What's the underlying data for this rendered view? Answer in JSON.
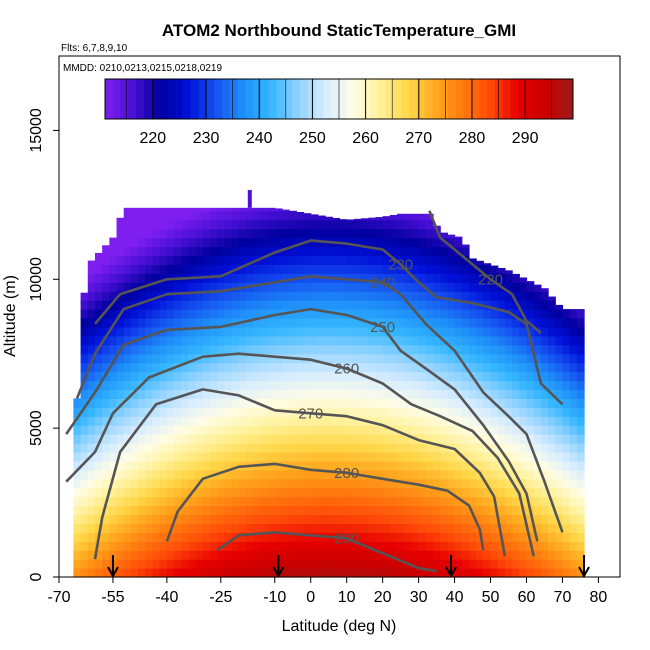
{
  "chart_data": {
    "type": "heatmap",
    "title": "ATOM2 Northbound StaticTemperature_GMI",
    "flights_label": "Flts: 6,7,8,9,10",
    "dates_label": "MMDD: 0210,0213,0215,0218,0219",
    "xlabel": "Latitude (deg N)",
    "ylabel": "Altitude (m)",
    "xlim": [
      -70,
      86
    ],
    "ylim": [
      0,
      17500
    ],
    "x_ticks": [
      -70,
      -55,
      -40,
      -25,
      -10,
      0,
      10,
      20,
      30,
      40,
      50,
      60,
      70,
      80
    ],
    "y_ticks": [
      0,
      5000,
      10000,
      15000
    ],
    "colorbar": {
      "ticks": [
        220,
        230,
        240,
        250,
        260,
        270,
        280,
        290
      ],
      "range": [
        211,
        299
      ],
      "colors": [
        "#7f1fef",
        "#4a10d6",
        "#00009e",
        "#0010d8",
        "#1550f0",
        "#1e8ff8",
        "#34b6ff",
        "#8fd2ff",
        "#d6ecff",
        "#fffde6",
        "#fff19a",
        "#ffd84a",
        "#ffa91f",
        "#ff7a0f",
        "#ff4a08",
        "#e80000",
        "#c80000",
        "#9e1b1b"
      ]
    },
    "contours": [
      {
        "level": "220",
        "points": [
          [
            33,
            12300
          ],
          [
            36,
            11400
          ],
          [
            42,
            10800
          ],
          [
            50,
            10000
          ],
          [
            56,
            9500
          ],
          [
            60,
            8600
          ],
          [
            64,
            8200
          ]
        ]
      },
      {
        "level": "230",
        "points": [
          [
            -60,
            8500
          ],
          [
            -53,
            9500
          ],
          [
            -40,
            10000
          ],
          [
            -25,
            10100
          ],
          [
            -10,
            10900
          ],
          [
            0,
            11300
          ],
          [
            10,
            11200
          ],
          [
            20,
            11000
          ],
          [
            25,
            10500
          ],
          [
            30,
            9900
          ],
          [
            35,
            9400
          ],
          [
            45,
            9200
          ],
          [
            55,
            8900
          ],
          [
            60,
            8500
          ],
          [
            64,
            6500
          ],
          [
            70,
            5800
          ]
        ]
      },
      {
        "level": "240",
        "points": [
          [
            -65,
            6000
          ],
          [
            -60,
            7500
          ],
          [
            -52,
            9000
          ],
          [
            -40,
            9500
          ],
          [
            -25,
            9600
          ],
          [
            -10,
            9900
          ],
          [
            0,
            10100
          ],
          [
            10,
            10000
          ],
          [
            20,
            9900
          ],
          [
            25,
            9500
          ],
          [
            32,
            8500
          ],
          [
            40,
            7600
          ],
          [
            48,
            6200
          ],
          [
            55,
            5400
          ],
          [
            60,
            4800
          ],
          [
            65,
            3200
          ],
          [
            70,
            1500
          ]
        ]
      },
      {
        "level": "250",
        "points": [
          [
            -68,
            4800
          ],
          [
            -60,
            6200
          ],
          [
            -52,
            7800
          ],
          [
            -40,
            8300
          ],
          [
            -25,
            8400
          ],
          [
            -10,
            8800
          ],
          [
            0,
            9000
          ],
          [
            10,
            8800
          ],
          [
            20,
            8400
          ],
          [
            25,
            7600
          ],
          [
            32,
            7000
          ],
          [
            40,
            6300
          ],
          [
            48,
            5100
          ],
          [
            55,
            3900
          ],
          [
            60,
            2800
          ],
          [
            63,
            1200
          ]
        ]
      },
      {
        "level": "260",
        "points": [
          [
            -68,
            3200
          ],
          [
            -60,
            4200
          ],
          [
            -55,
            5500
          ],
          [
            -45,
            6700
          ],
          [
            -30,
            7400
          ],
          [
            -20,
            7500
          ],
          [
            -10,
            7400
          ],
          [
            0,
            7300
          ],
          [
            10,
            7000
          ],
          [
            20,
            6500
          ],
          [
            28,
            5800
          ],
          [
            36,
            5400
          ],
          [
            45,
            4900
          ],
          [
            52,
            4000
          ],
          [
            58,
            2800
          ],
          [
            62,
            700
          ]
        ]
      },
      {
        "level": "270",
        "points": [
          [
            -60,
            600
          ],
          [
            -58,
            2000
          ],
          [
            -53,
            4200
          ],
          [
            -43,
            5800
          ],
          [
            -30,
            6300
          ],
          [
            -20,
            6100
          ],
          [
            -10,
            5600
          ],
          [
            0,
            5500
          ],
          [
            10,
            5400
          ],
          [
            20,
            5100
          ],
          [
            30,
            4600
          ],
          [
            40,
            4300
          ],
          [
            47,
            3500
          ],
          [
            51,
            2700
          ],
          [
            54,
            700
          ]
        ]
      },
      {
        "level": "280",
        "points": [
          [
            -40,
            1200
          ],
          [
            -37,
            2200
          ],
          [
            -30,
            3300
          ],
          [
            -20,
            3700
          ],
          [
            -10,
            3800
          ],
          [
            0,
            3600
          ],
          [
            10,
            3500
          ],
          [
            20,
            3300
          ],
          [
            30,
            3100
          ],
          [
            38,
            2900
          ],
          [
            44,
            2400
          ],
          [
            47,
            1600
          ],
          [
            48,
            900
          ]
        ]
      },
      {
        "level": "290",
        "points": [
          [
            -26,
            900
          ],
          [
            -20,
            1400
          ],
          [
            -10,
            1500
          ],
          [
            0,
            1400
          ],
          [
            10,
            1300
          ],
          [
            20,
            800
          ],
          [
            30,
            300
          ],
          [
            35,
            200
          ]
        ]
      }
    ],
    "arrow_latitudes": [
      -55,
      -9,
      39,
      76
    ]
  }
}
